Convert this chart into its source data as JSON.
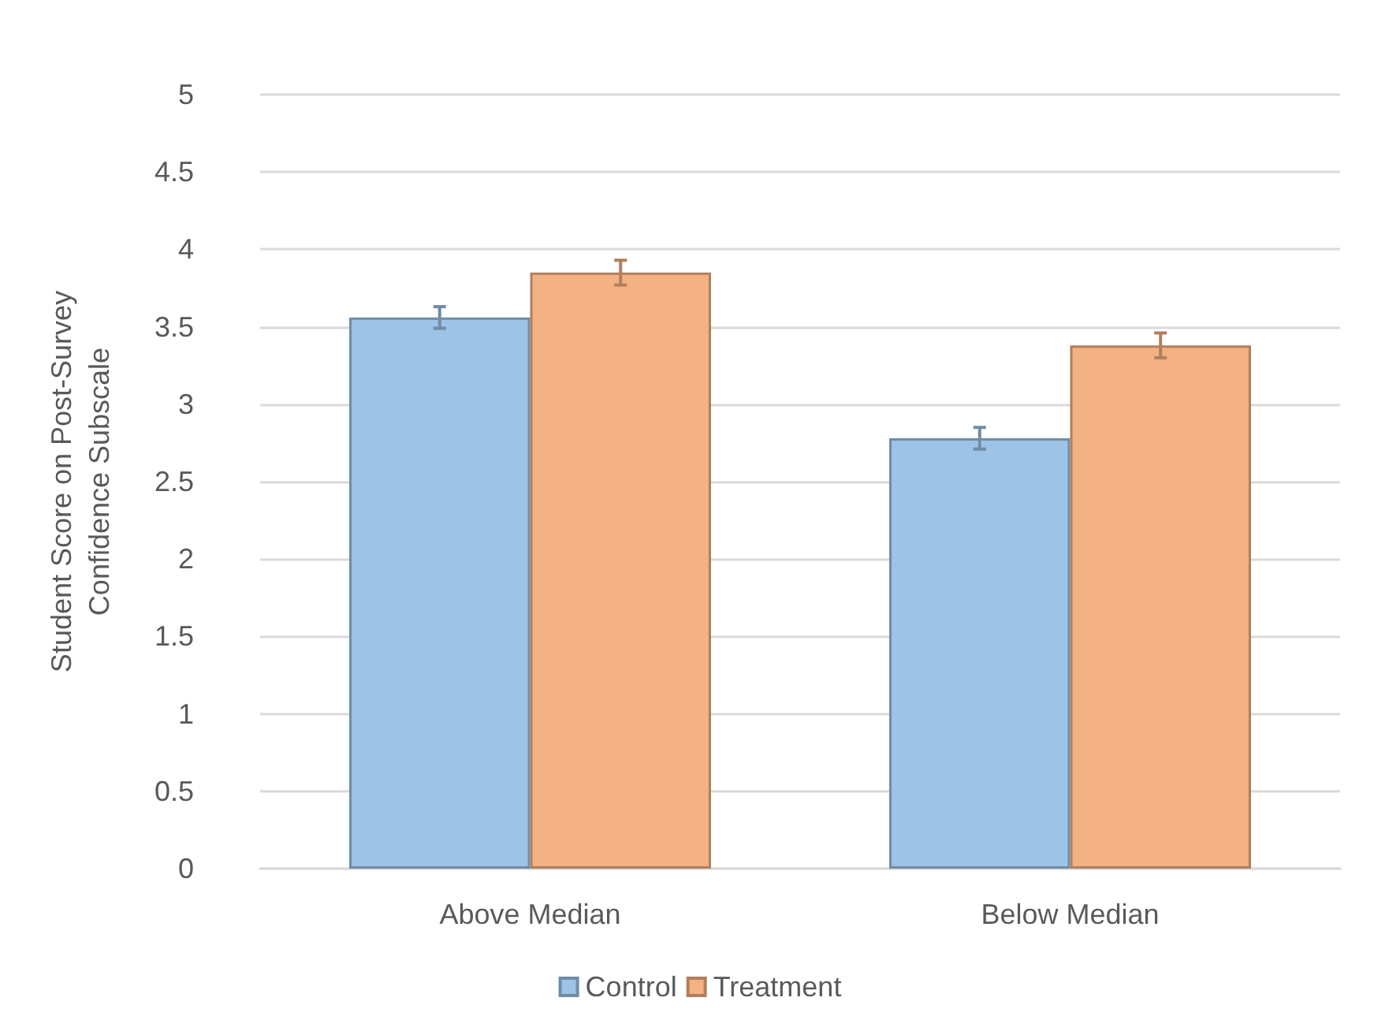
{
  "chart_data": {
    "type": "bar",
    "ylabel": "Student Score on Post-Survey\nConfidence Subscale",
    "categories": [
      "Above Median",
      "Below Median"
    ],
    "series": [
      {
        "name": "Control",
        "color": "#9dc3e6",
        "values": [
          3.56,
          2.78
        ],
        "errors": [
          0.07,
          0.07
        ]
      },
      {
        "name": "Treatment",
        "color": "#f4b183",
        "values": [
          3.85,
          3.38
        ],
        "errors": [
          0.08,
          0.08
        ]
      }
    ],
    "ylim": [
      0,
      5
    ],
    "yticks": [
      0,
      0.5,
      1,
      1.5,
      2,
      2.5,
      3,
      3.5,
      4,
      4.5,
      5
    ],
    "grid": "y",
    "legend": "bottom"
  }
}
